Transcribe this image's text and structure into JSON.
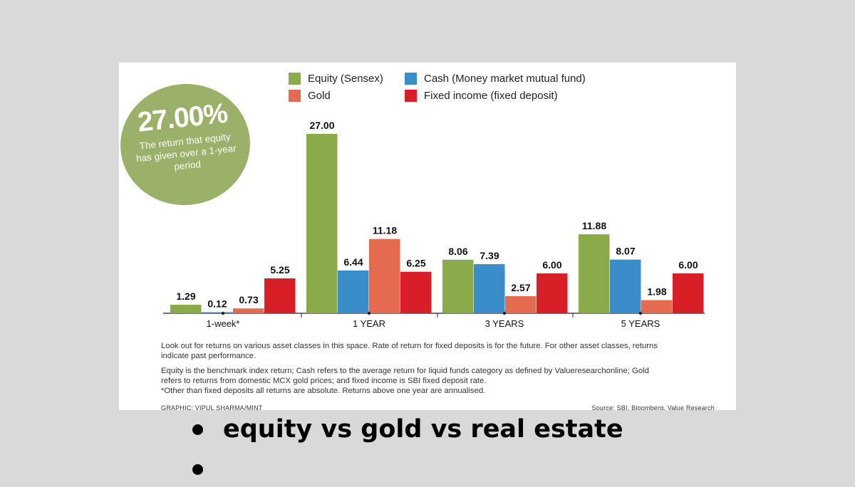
{
  "badge": {
    "value": "27.00%",
    "text": "The return that equity has given over a 1-year period"
  },
  "notes": {
    "line1": "Look out for returns on various asset classes in this space. Rate of return for fixed deposits is for the future. For other asset classes, returns indicate past performance.",
    "line2": "Equity is the benchmark index return; Cash refers to the average return for liquid funds category as defined by Valueresearchonline; Gold refers to returns from domestic MCX gold prices; and fixed income is SBI fixed deposit rate.",
    "line3": "*Other than fixed deposits all returns are absolute. Returns above one year are annualised."
  },
  "credits": {
    "graphic": "GRAPHIC: VIPUL SHARMA/MINT",
    "source": "Source: SBI, Bloomberg, Value Research"
  },
  "bullets": [
    "equity vs gold vs real estate",
    ""
  ],
  "colors": {
    "equity": "#8bab4a",
    "cash": "#3a8dc8",
    "gold": "#e46b4f",
    "fixed": "#d81f27"
  },
  "chart_data": {
    "type": "bar",
    "categories": [
      "1-week*",
      "1 YEAR",
      "3 YEARS",
      "5 YEARS"
    ],
    "series": [
      {
        "name": "Equity (Sensex)",
        "values": [
          1.29,
          27.0,
          8.06,
          11.88
        ],
        "labels": [
          "1.29",
          "27.00",
          "8.06",
          "11.88"
        ],
        "color": "#8bab4a"
      },
      {
        "name": "Cash (Money market mutual fund)",
        "values": [
          0.12,
          6.44,
          7.39,
          8.07
        ],
        "labels": [
          "0.12",
          "6.44",
          "7.39",
          "8.07"
        ],
        "color": "#3a8dc8"
      },
      {
        "name": "Gold",
        "values": [
          0.73,
          11.18,
          2.57,
          1.98
        ],
        "labels": [
          "0.73",
          "11.18",
          "2.57",
          "1.98"
        ],
        "color": "#e46b4f"
      },
      {
        "name": "Fixed income (fixed deposit)",
        "values": [
          5.25,
          6.25,
          6.0,
          6.0
        ],
        "labels": [
          "5.25",
          "6.25",
          "6.00",
          "6.00"
        ],
        "color": "#d81f27"
      }
    ],
    "ylim": [
      0,
      27
    ],
    "grid": false,
    "legend": "top"
  }
}
